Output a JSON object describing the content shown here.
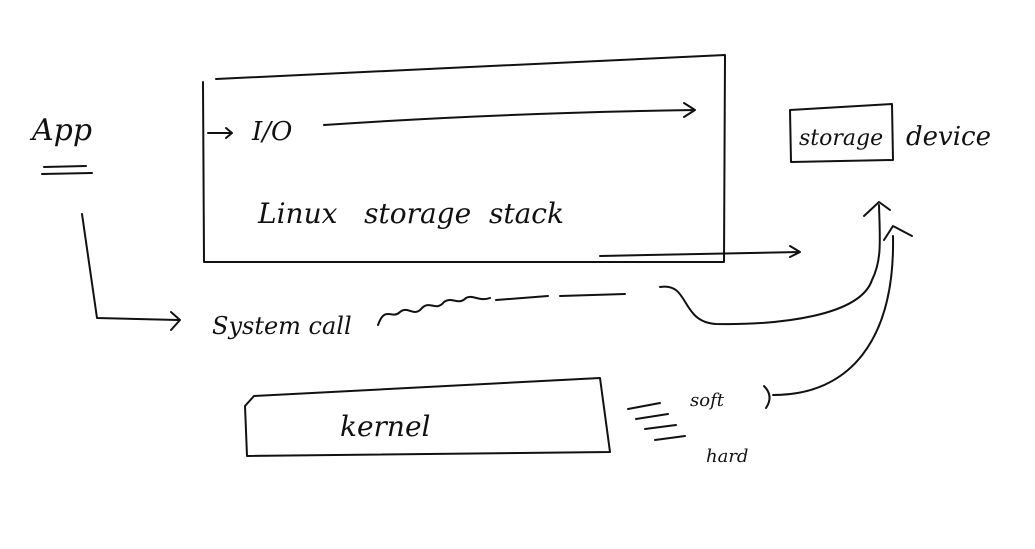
{
  "labels": {
    "app": "App",
    "io": "I/O",
    "linux_storage_stack": "Linux   storage  stack",
    "storage": "storage",
    "device": "device",
    "system_call": "System call",
    "kernel": "kernel",
    "soft": "soft",
    "hard": "hard"
  },
  "colors": {
    "ink": "#111111",
    "background": "#ffffff"
  }
}
